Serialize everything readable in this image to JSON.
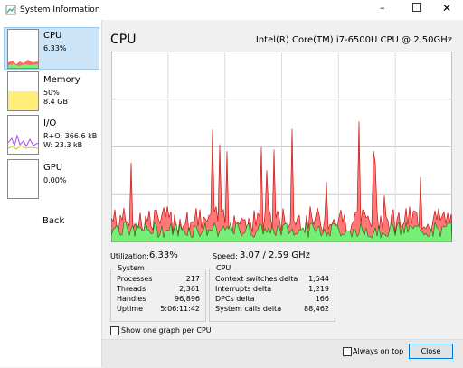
{
  "window": {
    "title": "System Information"
  },
  "sidebar": {
    "cpu": {
      "label": "CPU",
      "value": "6.33%"
    },
    "memory": {
      "label": "Memory",
      "value": "50%",
      "detail": "8.4 GB"
    },
    "io": {
      "label": "I/O",
      "value": "R+O: 366.6 kB",
      "detail": "W: 23.3 kB"
    },
    "gpu": {
      "label": "GPU",
      "value": "0.00%"
    },
    "back": "Back"
  },
  "header": {
    "title": "CPU",
    "processor": "Intel(R) Core(TM) i7-6500U CPU @ 2.50GHz"
  },
  "stats": {
    "utilization_label": "Utilization:",
    "utilization": "6.33%",
    "speed_label": "Speed:",
    "speed": "3.07 / 2.59 GHz"
  },
  "system": {
    "title": "System",
    "rows": [
      [
        "Processes",
        "217"
      ],
      [
        "Threads",
        "2,361"
      ],
      [
        "Handles",
        "96,896"
      ],
      [
        "Uptime",
        "5:06:11:42"
      ]
    ]
  },
  "cpu": {
    "title": "CPU",
    "rows": [
      [
        "Context switches delta",
        "1,544"
      ],
      [
        "Interrupts delta",
        "1,219"
      ],
      [
        "DPCs delta",
        "166"
      ],
      [
        "System calls delta",
        "88,462"
      ]
    ]
  },
  "options": {
    "per_cpu": "Show one graph per CPU",
    "always_on_top": "Always on top",
    "close": "Close"
  }
}
